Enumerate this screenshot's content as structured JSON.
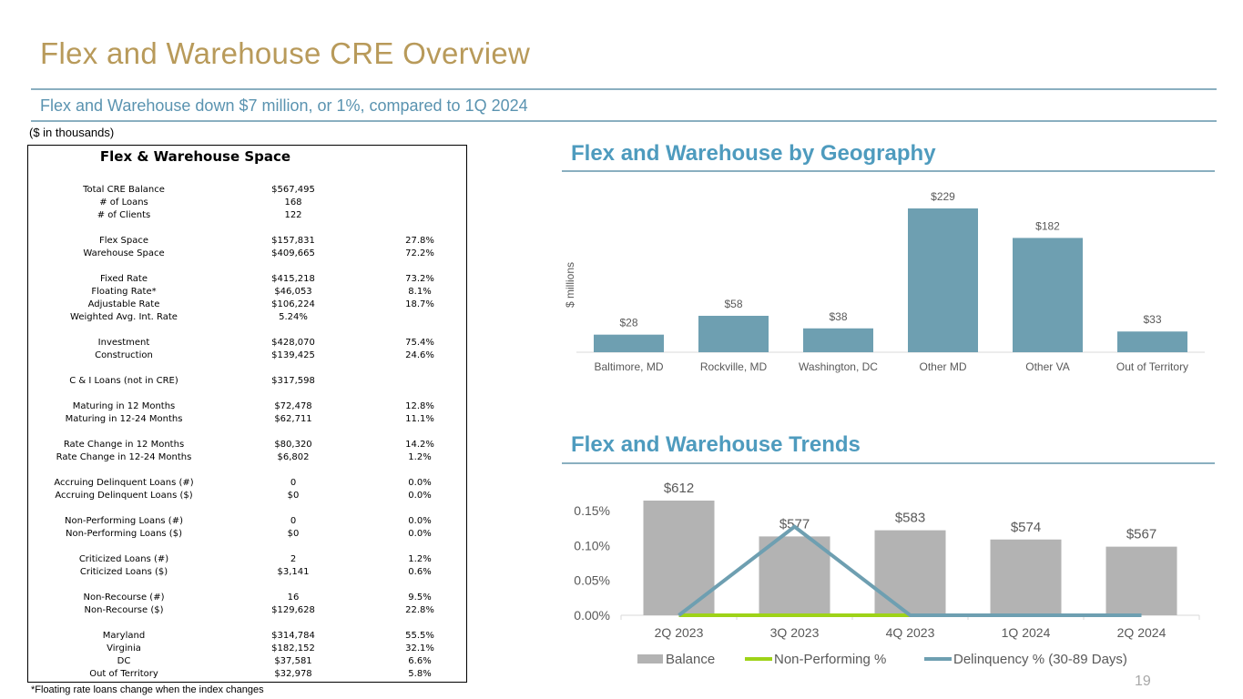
{
  "page": {
    "title": "Flex and Warehouse CRE Overview",
    "subtitle": "Flex and Warehouse down $7 million, or 1%, compared to 1Q 2024",
    "units_note": "($ in thousands)",
    "footnote": "*Floating rate loans change when the index changes",
    "page_number": "19",
    "colors": {
      "title": "#B89A5A",
      "subtitle": "#5A93B0",
      "section_title": "#4E9BBE",
      "rule": "#8AAFC0"
    }
  },
  "table": {
    "title": "Flex & Warehouse Space",
    "rows": [
      {
        "label": "Total CRE Balance",
        "value": "$567,495",
        "pct": ""
      },
      {
        "label": "# of Loans",
        "value": "168",
        "pct": ""
      },
      {
        "label": "# of Clients",
        "value": "122",
        "pct": ""
      },
      {
        "label": "Flex Space",
        "value": "$157,831",
        "pct": "27.8%"
      },
      {
        "label": "Warehouse Space",
        "value": "$409,665",
        "pct": "72.2%"
      },
      {
        "label": "Fixed Rate",
        "value": "$415,218",
        "pct": "73.2%"
      },
      {
        "label": "Floating Rate*",
        "value": "$46,053",
        "pct": "8.1%"
      },
      {
        "label": "Adjustable Rate",
        "value": "$106,224",
        "pct": "18.7%"
      },
      {
        "label": "Weighted Avg. Int. Rate",
        "value": "5.24%",
        "pct": ""
      },
      {
        "label": "Investment",
        "value": "$428,070",
        "pct": "75.4%"
      },
      {
        "label": "Construction",
        "value": "$139,425",
        "pct": "24.6%"
      },
      {
        "label": "C & I Loans (not in CRE)",
        "value": "$317,598",
        "pct": ""
      },
      {
        "label": "Maturing in 12 Months",
        "value": "$72,478",
        "pct": "12.8%"
      },
      {
        "label": "Maturing in 12-24 Months",
        "value": "$62,711",
        "pct": "11.1%"
      },
      {
        "label": "Rate Change in 12 Months",
        "value": "$80,320",
        "pct": "14.2%"
      },
      {
        "label": "Rate Change in 12-24 Months",
        "value": "$6,802",
        "pct": "1.2%"
      },
      {
        "label": "Accruing Delinquent Loans (#)",
        "value": "0",
        "pct": "0.0%"
      },
      {
        "label": "Accruing Delinquent Loans ($)",
        "value": "$0",
        "pct": "0.0%"
      },
      {
        "label": "Non-Performing Loans (#)",
        "value": "0",
        "pct": "0.0%"
      },
      {
        "label": "Non-Performing Loans ($)",
        "value": "$0",
        "pct": "0.0%"
      },
      {
        "label": "Criticized Loans (#)",
        "value": "2",
        "pct": "1.2%"
      },
      {
        "label": "Criticized Loans ($)",
        "value": "$3,141",
        "pct": "0.6%"
      },
      {
        "label": "Non-Recourse (#)",
        "value": "16",
        "pct": "9.5%"
      },
      {
        "label": "Non-Recourse ($)",
        "value": "$129,628",
        "pct": "22.8%"
      },
      {
        "label": "Maryland",
        "value": "$314,784",
        "pct": "55.5%"
      },
      {
        "label": "Virginia",
        "value": "$182,152",
        "pct": "32.1%"
      },
      {
        "label": "DC",
        "value": "$37,581",
        "pct": "6.6%"
      },
      {
        "label": "Out of Territory",
        "value": "$32,978",
        "pct": "5.8%"
      }
    ]
  },
  "chart_data": [
    {
      "type": "bar",
      "title": "Flex and Warehouse by Geography",
      "ylabel": "$ millions",
      "categories": [
        "Baltimore, MD",
        "Rockville, MD",
        "Washington, DC",
        "Other MD",
        "Other VA",
        "Out of Territory"
      ],
      "values": [
        28,
        58,
        38,
        229,
        182,
        33
      ],
      "data_labels": [
        "$28",
        "$58",
        "$38",
        "$229",
        "$182",
        "$33"
      ],
      "color": "#6E9FB1",
      "grid": false,
      "legend": "none"
    },
    {
      "type": "bar",
      "title": "Flex and Warehouse Trends",
      "categories": [
        "2Q 2023",
        "3Q 2023",
        "4Q 2023",
        "1Q 2024",
        "2Q 2024"
      ],
      "y_ticks": [
        "0.00%",
        "0.05%",
        "0.10%",
        "0.15%"
      ],
      "ylim": [
        0,
        0.15
      ],
      "bar_series": {
        "name": "Balance",
        "values": [
          612,
          577,
          583,
          574,
          567
        ],
        "data_labels": [
          "$612",
          "$577",
          "$583",
          "$574",
          "$567"
        ],
        "color": "#B3B3B3"
      },
      "series": [
        {
          "name": "Non-Performing %",
          "values": [
            0.0,
            0.0,
            0.0,
            0.0,
            0.0
          ],
          "color": "#9ED318"
        },
        {
          "name": "Delinquency % (30-89 Days)",
          "values": [
            0.0,
            0.127,
            0.0,
            0.0,
            0.0
          ],
          "color": "#6E9FB1"
        }
      ],
      "legend": "bottom",
      "grid": false
    }
  ]
}
